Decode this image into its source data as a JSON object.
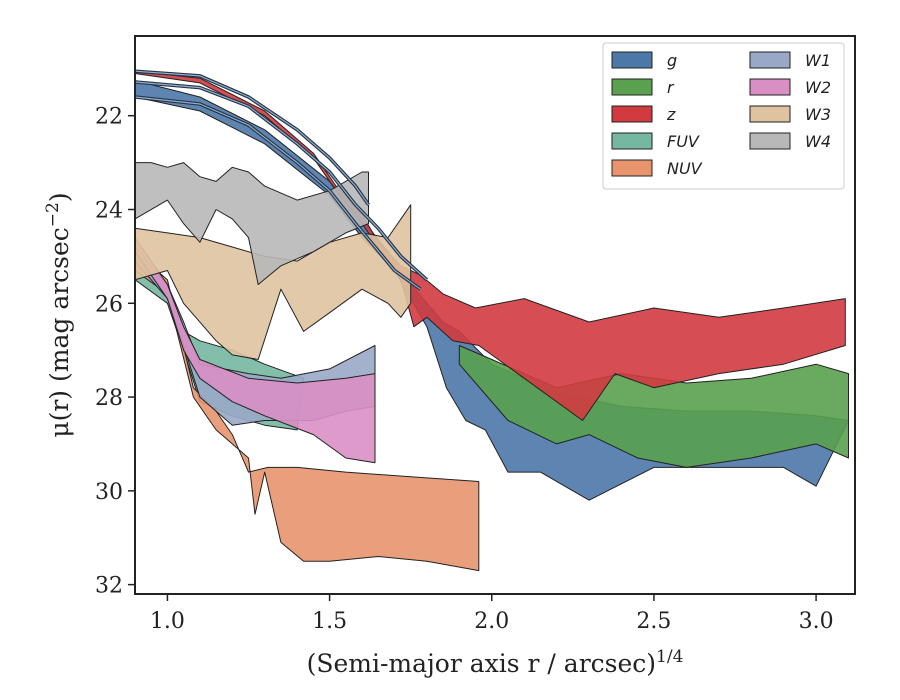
{
  "chart_data": {
    "type": "area",
    "xlabel": "(Semi-major axis r / arcsec)",
    "xlabel_exponent": "1/4",
    "ylabel": "μ(r) (mag arcsec",
    "ylabel_exponent": "−2",
    "ylabel_close": ")",
    "xlim": [
      0.9,
      3.12
    ],
    "ylim": [
      32.2,
      20.3
    ],
    "y_inverted": true,
    "xticks": [
      1.0,
      1.5,
      2.0,
      2.5,
      3.0
    ],
    "xtick_labels": [
      "1.0",
      "1.5",
      "2.0",
      "2.5",
      "3.0"
    ],
    "yticks": [
      22,
      24,
      26,
      28,
      30,
      32
    ],
    "ytick_labels": [
      "22",
      "24",
      "26",
      "28",
      "30",
      "32"
    ],
    "grid": false,
    "legend_position": "upper-right",
    "legend_columns": 2,
    "series": [
      {
        "name": "g",
        "color": "#4c78a8",
        "upper": [
          [
            0.9,
            21.25
          ],
          [
            1.1,
            21.6
          ],
          [
            1.3,
            22.3
          ],
          [
            1.5,
            23.4
          ],
          [
            1.6,
            24.2
          ],
          [
            1.68,
            24.9
          ],
          [
            1.75,
            25.6
          ],
          [
            1.8,
            26.0
          ],
          [
            1.85,
            26.4
          ],
          [
            1.9,
            26.6
          ],
          [
            2.0,
            27.3
          ],
          [
            2.2,
            27.9
          ],
          [
            2.4,
            28.2
          ],
          [
            2.6,
            28.3
          ],
          [
            2.8,
            28.3
          ],
          [
            3.0,
            28.4
          ],
          [
            3.1,
            28.5
          ]
        ],
        "lower": [
          [
            0.9,
            21.6
          ],
          [
            1.1,
            21.9
          ],
          [
            1.3,
            22.6
          ],
          [
            1.5,
            23.7
          ],
          [
            1.6,
            24.6
          ],
          [
            1.7,
            25.3
          ],
          [
            1.75,
            25.9
          ],
          [
            1.8,
            26.5
          ],
          [
            1.86,
            27.8
          ],
          [
            1.92,
            28.5
          ],
          [
            1.98,
            28.7
          ],
          [
            2.05,
            29.6
          ],
          [
            2.15,
            29.6
          ],
          [
            2.3,
            30.2
          ],
          [
            2.5,
            29.5
          ],
          [
            2.7,
            29.5
          ],
          [
            2.9,
            29.5
          ],
          [
            3.0,
            29.9
          ],
          [
            3.05,
            29.2
          ]
        ]
      },
      {
        "name": "r",
        "color": "#59a14f",
        "upper": [
          [
            1.9,
            26.9
          ],
          [
            2.0,
            27.2
          ],
          [
            2.2,
            27.8
          ],
          [
            2.4,
            27.5
          ],
          [
            2.6,
            27.7
          ],
          [
            2.8,
            27.6
          ],
          [
            3.0,
            27.3
          ],
          [
            3.1,
            27.5
          ]
        ],
        "lower": [
          [
            1.9,
            27.3
          ],
          [
            2.05,
            28.5
          ],
          [
            2.2,
            29.0
          ],
          [
            2.3,
            28.8
          ],
          [
            2.45,
            29.3
          ],
          [
            2.6,
            29.5
          ],
          [
            2.8,
            29.3
          ],
          [
            3.0,
            29.0
          ],
          [
            3.1,
            29.3
          ]
        ]
      },
      {
        "name": "z",
        "color": "#d13b40",
        "upper": [
          [
            0.9,
            21.05
          ],
          [
            1.1,
            21.2
          ],
          [
            1.3,
            21.9
          ],
          [
            1.45,
            22.8
          ],
          [
            1.52,
            23.5
          ],
          [
            1.6,
            24.1
          ],
          [
            1.65,
            24.7
          ],
          [
            1.72,
            25.2
          ],
          [
            1.78,
            25.4
          ],
          [
            1.85,
            25.8
          ],
          [
            1.95,
            26.1
          ],
          [
            2.1,
            25.9
          ],
          [
            2.3,
            26.4
          ],
          [
            2.5,
            26.1
          ],
          [
            2.7,
            26.3
          ],
          [
            2.9,
            26.1
          ],
          [
            3.09,
            25.9
          ]
        ],
        "lower": [
          [
            0.9,
            21.1
          ],
          [
            1.1,
            21.3
          ],
          [
            1.3,
            22.0
          ],
          [
            1.45,
            22.9
          ],
          [
            1.52,
            23.6
          ],
          [
            1.6,
            24.3
          ],
          [
            1.66,
            24.9
          ],
          [
            1.72,
            25.5
          ],
          [
            1.76,
            26.5
          ],
          [
            1.8,
            26.3
          ],
          [
            1.88,
            26.8
          ],
          [
            1.96,
            26.9
          ],
          [
            2.1,
            27.6
          ],
          [
            2.28,
            28.5
          ],
          [
            2.38,
            27.5
          ],
          [
            2.5,
            27.8
          ],
          [
            2.7,
            27.5
          ],
          [
            2.9,
            27.3
          ],
          [
            3.09,
            26.9
          ]
        ]
      },
      {
        "name": "FUV",
        "color": "#76b7a1",
        "upper": [
          [
            0.9,
            25.0
          ],
          [
            1.0,
            25.6
          ],
          [
            1.05,
            26.6
          ],
          [
            1.1,
            26.8
          ],
          [
            1.2,
            27.0
          ],
          [
            1.3,
            27.3
          ],
          [
            1.42,
            27.6
          ]
        ],
        "lower": [
          [
            0.9,
            25.5
          ],
          [
            1.0,
            26.0
          ],
          [
            1.05,
            27.0
          ],
          [
            1.1,
            28.1
          ],
          [
            1.2,
            28.4
          ],
          [
            1.3,
            28.6
          ],
          [
            1.4,
            28.7
          ]
        ]
      },
      {
        "name": "NUV",
        "color": "#e8956e",
        "upper": [
          [
            0.9,
            24.9
          ],
          [
            1.0,
            25.5
          ],
          [
            1.08,
            27.8
          ],
          [
            1.15,
            28.3
          ],
          [
            1.2,
            28.8
          ],
          [
            1.25,
            29.6
          ],
          [
            1.31,
            29.5
          ],
          [
            1.4,
            29.5
          ],
          [
            1.55,
            29.6
          ],
          [
            1.75,
            29.7
          ],
          [
            1.96,
            29.8
          ]
        ],
        "lower": [
          [
            0.9,
            25.3
          ],
          [
            1.0,
            25.8
          ],
          [
            1.08,
            28.0
          ],
          [
            1.15,
            28.7
          ],
          [
            1.2,
            29.0
          ],
          [
            1.25,
            29.3
          ],
          [
            1.27,
            30.5
          ],
          [
            1.3,
            29.6
          ],
          [
            1.35,
            31.1
          ],
          [
            1.42,
            31.5
          ],
          [
            1.5,
            31.5
          ],
          [
            1.65,
            31.4
          ],
          [
            1.8,
            31.5
          ],
          [
            1.96,
            31.7
          ]
        ]
      },
      {
        "name": "W1",
        "color": "#9aa8c8",
        "upper": [
          [
            0.9,
            24.8
          ],
          [
            1.0,
            25.6
          ],
          [
            1.05,
            26.4
          ],
          [
            1.1,
            27.3
          ],
          [
            1.25,
            27.5
          ],
          [
            1.35,
            27.6
          ],
          [
            1.5,
            27.4
          ],
          [
            1.64,
            26.9
          ]
        ],
        "lower": [
          [
            0.9,
            25.1
          ],
          [
            1.0,
            25.9
          ],
          [
            1.05,
            26.9
          ],
          [
            1.1,
            28.0
          ],
          [
            1.2,
            28.6
          ],
          [
            1.3,
            28.5
          ],
          [
            1.45,
            28.5
          ],
          [
            1.55,
            28.3
          ],
          [
            1.64,
            28.2
          ]
        ]
      },
      {
        "name": "W2",
        "color": "#d98fc4",
        "upper": [
          [
            0.9,
            24.6
          ],
          [
            1.0,
            25.6
          ],
          [
            1.05,
            26.5
          ],
          [
            1.1,
            27.2
          ],
          [
            1.25,
            27.6
          ],
          [
            1.4,
            27.7
          ],
          [
            1.55,
            27.6
          ],
          [
            1.64,
            27.5
          ]
        ],
        "lower": [
          [
            0.9,
            24.9
          ],
          [
            1.0,
            25.9
          ],
          [
            1.05,
            27.0
          ],
          [
            1.1,
            27.6
          ],
          [
            1.2,
            28.1
          ],
          [
            1.3,
            28.4
          ],
          [
            1.45,
            28.8
          ],
          [
            1.55,
            29.3
          ],
          [
            1.64,
            29.4
          ]
        ]
      },
      {
        "name": "W3",
        "color": "#dfc3a0",
        "upper": [
          [
            0.9,
            24.4
          ],
          [
            1.0,
            24.5
          ],
          [
            1.1,
            24.6
          ],
          [
            1.2,
            24.8
          ],
          [
            1.3,
            25.0
          ],
          [
            1.4,
            25.1
          ],
          [
            1.5,
            24.7
          ],
          [
            1.6,
            24.5
          ],
          [
            1.68,
            24.6
          ],
          [
            1.75,
            23.9
          ]
        ],
        "lower": [
          [
            0.9,
            25.5
          ],
          [
            1.0,
            25.3
          ],
          [
            1.05,
            26.0
          ],
          [
            1.15,
            26.8
          ],
          [
            1.2,
            27.1
          ],
          [
            1.28,
            27.2
          ],
          [
            1.35,
            25.7
          ],
          [
            1.42,
            26.6
          ],
          [
            1.5,
            26.2
          ],
          [
            1.6,
            25.7
          ],
          [
            1.68,
            26.0
          ],
          [
            1.72,
            26.3
          ],
          [
            1.75,
            26.0
          ]
        ]
      },
      {
        "name": "W4",
        "color": "#b8b8b8",
        "upper": [
          [
            0.9,
            23.0
          ],
          [
            0.95,
            23.0
          ],
          [
            1.0,
            23.1
          ],
          [
            1.05,
            23.0
          ],
          [
            1.1,
            23.3
          ],
          [
            1.15,
            23.4
          ],
          [
            1.2,
            23.1
          ],
          [
            1.25,
            23.2
          ],
          [
            1.3,
            23.5
          ],
          [
            1.4,
            23.8
          ],
          [
            1.5,
            23.6
          ],
          [
            1.6,
            23.2
          ],
          [
            1.62,
            23.2
          ]
        ],
        "lower": [
          [
            0.9,
            24.2
          ],
          [
            1.0,
            23.8
          ],
          [
            1.05,
            24.3
          ],
          [
            1.1,
            24.7
          ],
          [
            1.15,
            24.0
          ],
          [
            1.2,
            24.2
          ],
          [
            1.25,
            24.6
          ],
          [
            1.28,
            25.6
          ],
          [
            1.35,
            25.2
          ],
          [
            1.45,
            24.9
          ],
          [
            1.55,
            24.5
          ],
          [
            1.62,
            24.3
          ]
        ]
      }
    ],
    "profile_lines": {
      "stroke_color": "#2a3340",
      "inner_color": "#89b0d8",
      "lines": [
        [
          [
            0.9,
            21.28
          ],
          [
            1.1,
            21.4
          ],
          [
            1.25,
            21.8
          ],
          [
            1.4,
            22.6
          ],
          [
            1.5,
            23.2
          ],
          [
            1.58,
            23.9
          ],
          [
            1.65,
            24.4
          ],
          [
            1.72,
            25.0
          ],
          [
            1.8,
            25.5
          ]
        ],
        [
          [
            0.9,
            21.6
          ],
          [
            1.1,
            21.75
          ],
          [
            1.25,
            22.2
          ],
          [
            1.4,
            23.0
          ],
          [
            1.5,
            23.6
          ],
          [
            1.58,
            24.3
          ],
          [
            1.64,
            24.8
          ],
          [
            1.7,
            25.3
          ],
          [
            1.78,
            25.7
          ]
        ],
        [
          [
            0.9,
            21.05
          ],
          [
            1.1,
            21.15
          ],
          [
            1.25,
            21.6
          ],
          [
            1.4,
            22.3
          ],
          [
            1.5,
            22.9
          ],
          [
            1.58,
            23.5
          ],
          [
            1.62,
            23.9
          ]
        ]
      ]
    }
  }
}
